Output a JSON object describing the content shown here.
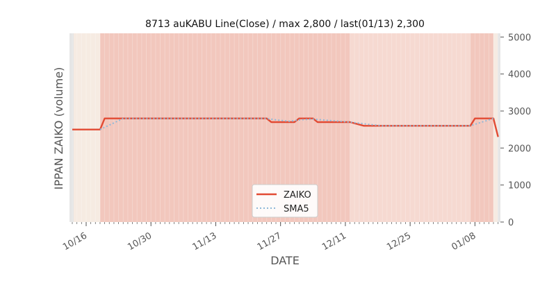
{
  "chart_data": {
    "type": "line",
    "title": "8713 auKABU Line(Close) / max 2,800 / last(01/13) 2,300",
    "xlabel": "DATE",
    "ylabel": "IPPAN ZAIKO (volume)",
    "ylim": [
      0,
      5000
    ],
    "yticks": [
      "0",
      "1000",
      "2000",
      "3000",
      "4000",
      "5000"
    ],
    "x_start": "2023-10-13",
    "xlim": [
      -0.6,
      92.5
    ],
    "xticks": [
      {
        "label": "10/16",
        "day": 3
      },
      {
        "label": "10/30",
        "day": 17
      },
      {
        "label": "11/13",
        "day": 31
      },
      {
        "label": "11/27",
        "day": 45
      },
      {
        "label": "12/11",
        "day": 59
      },
      {
        "label": "12/25",
        "day": 73
      },
      {
        "label": "01/08",
        "day": 87
      }
    ],
    "grid": false,
    "legend": "lower-center",
    "colors": {
      "zaiko": "#e24a33",
      "sma5": "#8eb8d8",
      "band_light": "#f6ebe2",
      "band_mid": "#f6d9d1",
      "band_dark": "#f2c7bd",
      "edge": "#e5e5e5"
    },
    "bands": [
      {
        "from": 0,
        "to": 6,
        "shade": "light"
      },
      {
        "from": 6,
        "to": 60,
        "shade": "dark"
      },
      {
        "from": 60,
        "to": 86,
        "shade": "mid"
      },
      {
        "from": 86,
        "to": 91,
        "shade": "dark"
      },
      {
        "from": 91,
        "to": 92.5,
        "shade": "light"
      }
    ],
    "series": [
      {
        "name": "ZAIKO",
        "style": "solid",
        "points": [
          [
            0,
            2500
          ],
          [
            6,
            2500
          ],
          [
            7,
            2800
          ],
          [
            42,
            2800
          ],
          [
            43,
            2700
          ],
          [
            48,
            2700
          ],
          [
            49,
            2800
          ],
          [
            52,
            2800
          ],
          [
            53,
            2700
          ],
          [
            60,
            2700
          ],
          [
            63,
            2600
          ],
          [
            86,
            2600
          ],
          [
            87,
            2800
          ],
          [
            91,
            2800
          ],
          [
            92,
            2300
          ]
        ]
      },
      {
        "name": "SMA5",
        "style": "dotted",
        "points": [
          [
            6,
            2500
          ],
          [
            11,
            2800
          ],
          [
            42,
            2800
          ],
          [
            44,
            2760
          ],
          [
            47,
            2720
          ],
          [
            49,
            2760
          ],
          [
            52,
            2780
          ],
          [
            56,
            2740
          ],
          [
            60,
            2700
          ],
          [
            64,
            2640
          ],
          [
            67,
            2600
          ],
          [
            86,
            2600
          ],
          [
            90,
            2760
          ],
          [
            91,
            2800
          ]
        ]
      }
    ]
  }
}
